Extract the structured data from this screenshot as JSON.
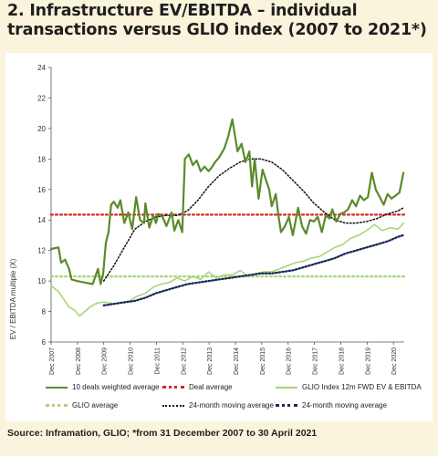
{
  "title_line1": "2. Infrastructure EV/EBITDA – individual",
  "title_line2": "transactions versus GLIO index (2007 to 2021*)",
  "source": "Source: Inframation, GLIO; *from 31 December 2007 to 30 April 2021",
  "colors": {
    "deals": "#5b8a2a",
    "deal_avg": "#d9261c",
    "glio": "#a9d47a",
    "glio_avg": "#a9d47a",
    "ma_deals": "#111111",
    "ma_glio": "#1b2a5a"
  },
  "legend": {
    "deals": "10 deals weighted average",
    "deal_avg": "Deal average",
    "glio": "GLIO Index 12m FWD EV & EBITDA",
    "glio_avg": "GLIO average",
    "ma_deals": "24-month moving average",
    "ma_glio": "24-month moving average"
  },
  "chart_data": {
    "type": "line",
    "title": "Infrastructure EV/EBITDA – individual transactions versus GLIO index (2007 to 2021*)",
    "ylabel": "EV / EBITDA multiple (X)",
    "xlabel": "",
    "ylim": [
      6,
      24
    ],
    "yticks": [
      6,
      8,
      10,
      12,
      14,
      16,
      18,
      20,
      22,
      24
    ],
    "xlim": [
      2007.92,
      2021.33
    ],
    "x_tick_labels": [
      "Dec 2007",
      "Dec 2008",
      "Dec 2009",
      "Dec 2010",
      "Dec 2011",
      "Dec 2012",
      "Dec 2013",
      "Dec 2014",
      "Dec 2015",
      "Dec 2016",
      "Dec 2017",
      "Dec 2018",
      "Dec 2019",
      "Dec 2020"
    ],
    "x_tick_positions": [
      2007.92,
      2008.92,
      2009.92,
      2010.92,
      2011.92,
      2012.92,
      2013.92,
      2014.92,
      2015.92,
      2016.92,
      2017.92,
      2018.92,
      2019.92,
      2020.92
    ],
    "grid": false,
    "legend_position": "bottom",
    "series": [
      {
        "name": "10 deals weighted average",
        "style": "solid",
        "x": [
          2007.92,
          2008.2,
          2008.3,
          2008.45,
          2008.6,
          2008.7,
          2008.9,
          2009.2,
          2009.5,
          2009.7,
          2009.8,
          2009.9,
          2010.0,
          2010.1,
          2010.2,
          2010.3,
          2010.45,
          2010.55,
          2010.7,
          2010.85,
          2011.0,
          2011.15,
          2011.3,
          2011.45,
          2011.5,
          2011.65,
          2011.8,
          2011.9,
          2012.0,
          2012.15,
          2012.3,
          2012.5,
          2012.6,
          2012.75,
          2012.9,
          2013.0,
          2013.15,
          2013.3,
          2013.45,
          2013.6,
          2013.75,
          2013.9,
          2014.0,
          2014.15,
          2014.3,
          2014.5,
          2014.65,
          2014.8,
          2015.0,
          2015.15,
          2015.3,
          2015.45,
          2015.55,
          2015.65,
          2015.8,
          2015.95,
          2016.1,
          2016.2,
          2016.3,
          2016.45,
          2016.55,
          2016.65,
          2016.8,
          2016.95,
          2017.1,
          2017.3,
          2017.45,
          2017.6,
          2017.75,
          2017.9,
          2018.05,
          2018.2,
          2018.35,
          2018.5,
          2018.6,
          2018.75,
          2018.9,
          2019.05,
          2019.2,
          2019.35,
          2019.5,
          2019.65,
          2019.8,
          2019.95,
          2020.1,
          2020.25,
          2020.4,
          2020.55,
          2020.7,
          2020.85,
          2021.0,
          2021.15,
          2021.3
        ],
        "values": [
          12.1,
          12.2,
          11.2,
          11.4,
          10.8,
          10.1,
          10.0,
          9.9,
          9.8,
          10.8,
          9.8,
          10.5,
          12.5,
          13.2,
          15.0,
          15.2,
          14.8,
          15.3,
          13.8,
          14.5,
          13.4,
          15.5,
          14.0,
          13.8,
          15.1,
          13.5,
          14.3,
          13.8,
          14.4,
          14.2,
          13.6,
          14.5,
          13.3,
          14.0,
          13.2,
          18.0,
          18.3,
          17.6,
          17.9,
          17.2,
          17.5,
          17.2,
          17.4,
          17.8,
          18.1,
          18.7,
          19.5,
          20.6,
          18.5,
          19.0,
          17.8,
          18.5,
          16.2,
          18.0,
          15.4,
          17.3,
          16.5,
          16.0,
          14.9,
          15.7,
          14.3,
          13.2,
          13.6,
          14.2,
          13.0,
          14.8,
          13.6,
          13.1,
          14.0,
          13.9,
          14.2,
          13.2,
          14.3,
          14.1,
          14.7,
          13.9,
          14.4,
          14.5,
          14.7,
          15.3,
          14.9,
          15.6,
          15.3,
          15.5,
          17.1,
          16.0,
          15.5,
          15.0,
          15.7,
          15.4,
          15.6,
          15.8,
          17.1
        ]
      },
      {
        "name": "Deal average",
        "style": "dotted",
        "x": [
          2007.92,
          2021.33
        ],
        "values": [
          14.35,
          14.35
        ]
      },
      {
        "name": "GLIO Index 12m FWD EV & EBITDA",
        "style": "solid",
        "x": [
          2007.92,
          2008.2,
          2008.4,
          2008.6,
          2008.8,
          2009.0,
          2009.2,
          2009.4,
          2009.6,
          2009.8,
          2010.0,
          2010.3,
          2010.6,
          2010.9,
          2011.2,
          2011.5,
          2011.8,
          2012.1,
          2012.4,
          2012.7,
          2013.0,
          2013.3,
          2013.6,
          2013.9,
          2014.2,
          2014.5,
          2014.8,
          2015.1,
          2015.4,
          2015.7,
          2016.0,
          2016.3,
          2016.6,
          2016.9,
          2017.2,
          2017.5,
          2017.8,
          2018.1,
          2018.4,
          2018.7,
          2019.0,
          2019.3,
          2019.6,
          2019.9,
          2020.2,
          2020.5,
          2020.8,
          2021.1,
          2021.3
        ],
        "values": [
          9.7,
          9.3,
          8.8,
          8.3,
          8.1,
          7.7,
          8.0,
          8.3,
          8.5,
          8.6,
          8.6,
          8.5,
          8.6,
          8.7,
          9.0,
          9.2,
          9.6,
          9.8,
          9.9,
          10.2,
          10.0,
          10.3,
          10.1,
          10.6,
          10.2,
          10.4,
          10.4,
          10.7,
          10.3,
          10.5,
          10.6,
          10.6,
          10.8,
          11.0,
          11.2,
          11.3,
          11.5,
          11.6,
          11.9,
          12.2,
          12.4,
          12.8,
          13.0,
          13.3,
          13.7,
          13.3,
          13.5,
          13.4,
          13.8
        ]
      },
      {
        "name": "GLIO average",
        "style": "dotted",
        "x": [
          2007.92,
          2021.33
        ],
        "values": [
          10.3,
          10.3
        ]
      },
      {
        "name": "24-month moving average",
        "style": "dotted",
        "x": [
          2009.92,
          2010.3,
          2010.7,
          2011.1,
          2011.5,
          2011.9,
          2012.3,
          2012.7,
          2013.1,
          2013.5,
          2013.9,
          2014.3,
          2014.7,
          2015.1,
          2015.5,
          2015.9,
          2016.3,
          2016.7,
          2017.1,
          2017.5,
          2017.9,
          2018.3,
          2018.7,
          2019.1,
          2019.5,
          2019.9,
          2020.3,
          2020.7,
          2021.1,
          2021.3
        ],
        "values": [
          10.0,
          11.0,
          12.2,
          13.4,
          13.9,
          14.2,
          14.3,
          14.3,
          14.6,
          15.3,
          16.2,
          16.9,
          17.4,
          17.8,
          18.0,
          18.0,
          17.8,
          17.3,
          16.6,
          15.9,
          15.1,
          14.5,
          14.0,
          13.8,
          13.8,
          13.9,
          14.1,
          14.4,
          14.6,
          14.8
        ]
      },
      {
        "name": "24-month moving average",
        "style": "dotted",
        "x": [
          2009.92,
          2010.3,
          2010.7,
          2011.1,
          2011.5,
          2011.9,
          2012.3,
          2012.7,
          2013.1,
          2013.5,
          2013.9,
          2014.3,
          2014.7,
          2015.1,
          2015.5,
          2015.9,
          2016.3,
          2016.7,
          2017.1,
          2017.5,
          2017.9,
          2018.3,
          2018.7,
          2019.1,
          2019.5,
          2019.9,
          2020.3,
          2020.7,
          2021.1,
          2021.3
        ],
        "values": [
          8.4,
          8.5,
          8.6,
          8.7,
          8.9,
          9.2,
          9.4,
          9.6,
          9.8,
          9.9,
          10.0,
          10.1,
          10.2,
          10.3,
          10.4,
          10.5,
          10.5,
          10.6,
          10.7,
          10.9,
          11.1,
          11.3,
          11.5,
          11.8,
          12.0,
          12.2,
          12.4,
          12.6,
          12.9,
          13.0
        ]
      }
    ]
  }
}
